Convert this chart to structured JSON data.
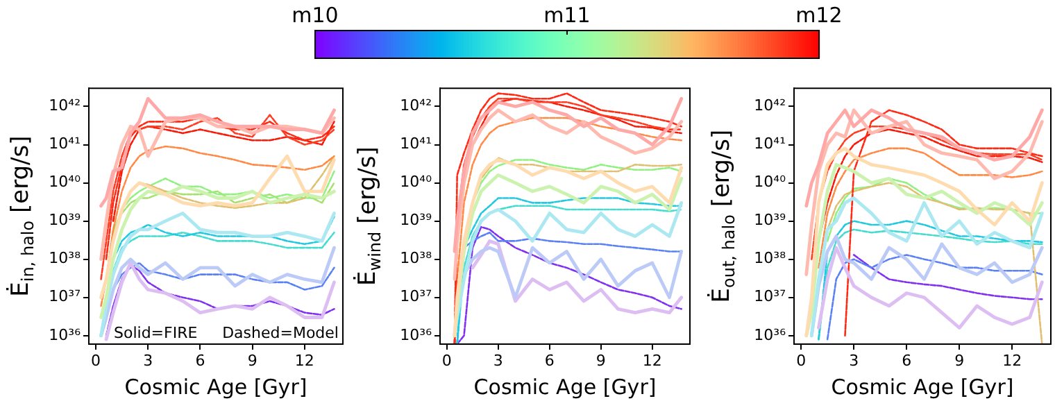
{
  "chart_data": [
    {
      "type": "line",
      "ylabel": "Ė$_{in, halo}$ [erg/s]",
      "xlabel": "Cosmic Age [Gyr]",
      "log": "y",
      "grid": false,
      "legend": false,
      "marker": "none",
      "xlim": [
        -0.4,
        14.2
      ],
      "xticks": [
        0,
        3,
        6,
        9,
        12
      ],
      "ylim": [
        6e+35,
        3e+42
      ],
      "yticks": [
        {
          "value": 1e+36,
          "label": "10³⁶"
        },
        {
          "value": 1e+37,
          "label": "10³⁷"
        },
        {
          "value": 1e+38,
          "label": "10³⁸"
        },
        {
          "value": 1e+39,
          "label": "10³⁹"
        },
        {
          "value": 1e+40,
          "label": "10⁴⁰"
        },
        {
          "value": 1e+41,
          "label": "10⁴¹"
        },
        {
          "value": 1e+42,
          "label": "10⁴²"
        }
      ],
      "clim": [
        10,
        12
      ],
      "cticks": [
        {
          "value": 10,
          "label": "m10"
        },
        {
          "value": 11,
          "label": "m11"
        },
        {
          "value": 12,
          "label": "m12"
        }
      ],
      "annotations": [
        "Solid=FIRE",
        "Dashed=Model"
      ],
      "x": [
        0.3,
        0.6,
        1,
        1.5,
        2,
        2.5,
        3,
        4,
        5,
        6,
        7,
        8,
        9,
        10,
        11,
        12,
        13,
        13.7
      ],
      "series": [
        {
          "color": "#ffa8a8",
          "line_style": "solid",
          "values": [
            2.5e+39,
            4e+39,
            2e+40,
            2.5e+40,
            2e+41,
            4e+41,
            1.6e+42,
            5e+41,
            5e+41,
            6e+41,
            4e+41,
            3e+41,
            3e+41,
            3e+41,
            2.5e+41,
            2.5e+41,
            2e+41,
            8e+41
          ]
        },
        {
          "color": "#ffbab0",
          "line_style": "solid",
          "values": [
            1e+38,
            1e+39,
            1.6e+40,
            1e+41,
            3e+41,
            2.5e+41,
            5e+40,
            4e+41,
            5e+41,
            5e+41,
            3e+41,
            3e+41,
            2e+41,
            3e+41,
            3e+41,
            2.5e+41,
            2e+41,
            5e+41
          ]
        },
        {
          "color": "#ffdcb0",
          "line_style": "solid",
          "values": [
            1e+37,
            3e+37,
            3e+38,
            2e+39,
            6e+39,
            1e+40,
            8e+39,
            5e+39,
            3e+39,
            2.5e+39,
            3e+39,
            2.5e+39,
            3e+39,
            1.3e+40,
            5e+40,
            6e+39,
            6e+39,
            4e+40
          ]
        },
        {
          "color": "#ccf2b0",
          "line_style": "solid",
          "values": [
            3e+36,
            1e+37,
            1e+38,
            6e+38,
            2e+39,
            4e+39,
            6e+39,
            5e+39,
            8e+39,
            6e+39,
            4e+39,
            4e+39,
            6e+39,
            3e+39,
            4e+39,
            5e+39,
            4e+39,
            6e+39
          ]
        },
        {
          "color": "#ace8f2",
          "line_style": "solid",
          "values": [
            1e+36,
            6e+36,
            4e+37,
            1.6e+38,
            4e+38,
            6e+38,
            6e+38,
            1e+39,
            1.6e+39,
            6e+38,
            5e+38,
            5e+38,
            4e+38,
            4e+38,
            5e+38,
            4e+38,
            3e+38,
            1.6e+39
          ]
        },
        {
          "color": "#bccaf8",
          "line_style": "solid",
          "values": [
            1e+36,
            3e+36,
            1.6e+37,
            6e+37,
            1e+38,
            6e+37,
            4e+37,
            8e+37,
            3e+37,
            6e+37,
            6e+37,
            2e+37,
            4e+37,
            2.5e+37,
            4e+37,
            3e+37,
            2.5e+37,
            2e+38
          ]
        },
        {
          "color": "#dcbef2",
          "line_style": "solid",
          "values": [
            null,
            8e+35,
            4e+36,
            2.5e+37,
            8e+37,
            3e+37,
            1.6e+37,
            1.3e+37,
            8e+36,
            4e+36,
            5e+36,
            6e+36,
            5e+36,
            1e+37,
            6e+36,
            3e+36,
            3e+36,
            2.5e+37
          ]
        },
        {
          "color": "#ff2a14",
          "line_style": "dashed",
          "values": [
            null,
            1e+38,
            3e+39,
            3e+40,
            1.6e+41,
            3e+41,
            4e+41,
            4e+41,
            4e+41,
            5e+41,
            3e+41,
            2.5e+41,
            2.5e+41,
            4e+41,
            2e+41,
            1.3e+41,
            1.6e+41,
            3e+41
          ]
        },
        {
          "color": "#ff3d22",
          "line_style": "dashed",
          "values": [
            3e+37,
            3e+38,
            6e+39,
            5e+40,
            2e+41,
            2.5e+41,
            3e+41,
            3e+41,
            2.5e+41,
            4e+41,
            5e+41,
            2e+41,
            1.6e+41,
            6e+41,
            1.6e+41,
            1e+41,
            1.3e+41,
            2.5e+41
          ]
        },
        {
          "color": "#f51a0a",
          "line_style": "dashed",
          "values": [
            null,
            null,
            1e+39,
            2e+40,
            1e+41,
            2.5e+41,
            3e+41,
            2.5e+41,
            2e+41,
            2.5e+41,
            2e+41,
            1.6e+41,
            1.3e+41,
            1.3e+41,
            1.6e+41,
            1.3e+41,
            1e+41,
            4e+41
          ]
        },
        {
          "color": "#ff8a45",
          "line_style": "dashed",
          "values": [
            6e+36,
            3e+37,
            6e+38,
            6e+39,
            2.5e+40,
            5e+40,
            7e+40,
            9e+40,
            8e+40,
            6e+40,
            5e+40,
            4e+40,
            3e+40,
            2.8e+40,
            2.5e+40,
            2.2e+40,
            2.8e+40,
            5e+40
          ]
        },
        {
          "color": "#e0c070",
          "line_style": "dashed",
          "values": [
            null,
            null,
            3e+38,
            2e+39,
            6e+39,
            1e+40,
            9e+39,
            6e+39,
            4e+39,
            3e+39,
            2.5e+39,
            2.2e+39,
            2.5e+39,
            3e+39,
            3e+39,
            4e+39,
            1.6e+40,
            5e+40
          ]
        },
        {
          "color": "#90f080",
          "line_style": "dashed",
          "values": [
            null,
            3e+37,
            5e+38,
            2e+39,
            4e+39,
            6e+39,
            8e+39,
            1.3e+40,
            8e+39,
            8e+39,
            5e+39,
            5e+39,
            6e+39,
            4e+39,
            5e+39,
            4e+39,
            4e+39,
            2e+40
          ]
        },
        {
          "color": "#a8e070",
          "line_style": "dashed",
          "values": [
            null,
            null,
            6e+38,
            1.6e+39,
            3e+39,
            4e+39,
            4e+39,
            6e+39,
            5e+39,
            5e+39,
            6e+39,
            3e+39,
            4e+39,
            5e+39,
            3e+39,
            5e+39,
            3e+39,
            1e+40
          ]
        },
        {
          "color": "#22c8e0",
          "line_style": "dashed",
          "values": [
            null,
            null,
            1e+38,
            3e+38,
            5e+38,
            6e+38,
            8e+38,
            5e+38,
            4e+38,
            5e+38,
            4e+38,
            4e+38,
            4e+38,
            4e+38,
            3e+38,
            2.5e+38,
            3e+38,
            1.3e+39
          ]
        },
        {
          "color": "#45dcd0",
          "line_style": "dashed",
          "values": [
            1e+36,
            6e+36,
            5e+37,
            2e+38,
            3e+38,
            4e+38,
            4e+38,
            4e+38,
            5e+38,
            4e+38,
            3e+38,
            3e+38,
            3e+38,
            2.5e+38,
            2e+38,
            2e+38,
            2e+38,
            5e+38
          ]
        },
        {
          "color": "#5a80f5",
          "line_style": "dashed",
          "values": [
            null,
            null,
            1.6e+37,
            4e+37,
            6e+37,
            8e+37,
            5e+37,
            4e+37,
            3e+37,
            4e+37,
            4e+37,
            4e+37,
            3e+37,
            2.5e+37,
            2.5e+37,
            1.6e+37,
            2e+37,
            6e+37
          ]
        },
        {
          "color": "#8030f0",
          "line_style": "dashed",
          "values": [
            null,
            1e+36,
            6e+36,
            3e+37,
            7e+37,
            5e+37,
            2.5e+37,
            1.3e+37,
            1e+37,
            8e+36,
            5e+36,
            6e+36,
            6e+36,
            8e+36,
            6e+36,
            4e+36,
            3.5e+36,
            5e+36
          ]
        }
      ]
    },
    {
      "type": "line",
      "ylabel": "Ė$_{wind}$ [erg/s]",
      "xlabel": "Cosmic Age [Gyr]",
      "log": "y",
      "grid": false,
      "legend": false,
      "marker": "none",
      "xlim": [
        -0.4,
        14.2
      ],
      "xticks": [
        0,
        3,
        6,
        9,
        12
      ],
      "ylim": [
        6e+35,
        3e+42
      ],
      "yticks": [
        {
          "value": 1e+36,
          "label": "10³⁶"
        },
        {
          "value": 1e+37,
          "label": "10³⁷"
        },
        {
          "value": 1e+38,
          "label": "10³⁸"
        },
        {
          "value": 1e+39,
          "label": "10³⁹"
        },
        {
          "value": 1e+40,
          "label": "10⁴⁰"
        },
        {
          "value": 1e+41,
          "label": "10⁴¹"
        },
        {
          "value": 1e+42,
          "label": "10⁴²"
        }
      ],
      "x": [
        0.45,
        0.6,
        1,
        1.5,
        2,
        2.5,
        3,
        4,
        5,
        6,
        7,
        8,
        9,
        10,
        11,
        12,
        13,
        13.7
      ],
      "series": [
        {
          "color": "#ffa8a8",
          "line_style": "solid",
          "values": [
            1.6e+38,
            1e+39,
            2e+40,
            2e+41,
            5e+41,
            8e+41,
            1.3e+42,
            1e+42,
            1.3e+42,
            8e+41,
            6e+41,
            3e+41,
            5e+41,
            2.5e+41,
            2e+41,
            1e+41,
            3e+41,
            1.6e+42
          ]
        },
        {
          "color": "#ffbab0",
          "line_style": "solid",
          "values": [
            3e+37,
            3e+38,
            1e+40,
            1e+41,
            2.5e+41,
            5e+41,
            8e+41,
            4e+41,
            6e+41,
            3e+41,
            2e+41,
            4e+41,
            1.6e+41,
            1e+41,
            6e+40,
            8e+40,
            1.6e+41,
            4e+41
          ]
        },
        {
          "color": "#ffdcb0",
          "line_style": "solid",
          "values": [
            1e+36,
            1e+37,
            3e+38,
            3e+39,
            1.6e+40,
            3e+40,
            4e+40,
            3e+40,
            1.6e+40,
            2.5e+40,
            2e+40,
            1.3e+40,
            2e+40,
            1e+40,
            6e+39,
            8e+39,
            3e+39,
            2.5e+40
          ]
        },
        {
          "color": "#ccf2b0",
          "line_style": "solid",
          "values": [
            1e+36,
            6e+36,
            1.6e+38,
            1.6e+39,
            6e+39,
            1e+40,
            1.6e+40,
            1e+40,
            6e+39,
            8e+39,
            5e+39,
            3e+39,
            8e+39,
            6e+39,
            3e+39,
            5e+39,
            2e+39,
            1.3e+40
          ]
        },
        {
          "color": "#ace8f2",
          "line_style": "solid",
          "values": [
            1e+36,
            3e+36,
            3e+37,
            3e+38,
            1e+39,
            1.6e+39,
            2e+39,
            1e+39,
            3e+38,
            1.6e+39,
            6e+38,
            5e+38,
            1.6e+39,
            6e+38,
            4e+38,
            8e+38,
            4e+38,
            3e+39
          ]
        },
        {
          "color": "#bccaf8",
          "line_style": "solid",
          "values": [
            null,
            null,
            4e+37,
            1e+38,
            1.6e+38,
            2e+38,
            1.6e+38,
            1e+37,
            2e+38,
            8e+37,
            1.6e+38,
            3e+37,
            1e+38,
            2e+37,
            5e+37,
            8e+37,
            1e+37,
            1.6e+38
          ]
        },
        {
          "color": "#dcbef2",
          "line_style": "solid",
          "values": [
            null,
            null,
            null,
            6e+37,
            1.3e+38,
            3e+38,
            2.5e+38,
            8e+36,
            3e+37,
            1.6e+37,
            2.5e+37,
            8e+36,
            1.6e+37,
            5e+36,
            4e+36,
            5e+36,
            4e+36,
            1e+37
          ]
        },
        {
          "color": "#ff2a14",
          "line_style": "dashed",
          "values": [
            6e+35,
            1.6e+40,
            6e+40,
            2.5e+41,
            8e+41,
            1.6e+42,
            2.2e+42,
            2e+42,
            1.6e+42,
            1.6e+42,
            2.2e+42,
            1.3e+42,
            8e+41,
            7e+41,
            6e+41,
            5e+41,
            4e+41,
            3e+41
          ]
        },
        {
          "color": "#ff3d22",
          "line_style": "dashed",
          "values": [
            6e+35,
            1e+39,
            3e+40,
            1.6e+41,
            5e+41,
            1e+42,
            1.6e+42,
            1.6e+42,
            1.3e+42,
            1.3e+42,
            1.3e+42,
            1e+42,
            6e+41,
            5e+41,
            4e+41,
            3e+41,
            2.5e+41,
            2.5e+41
          ]
        },
        {
          "color": "#f51a0a",
          "line_style": "dashed",
          "values": [
            6e+35,
            3e+38,
            1.6e+40,
            1e+41,
            3e+41,
            8e+41,
            1.3e+42,
            1.6e+42,
            1.4e+42,
            1.3e+42,
            1e+42,
            8e+41,
            6e+41,
            4.5e+41,
            3e+41,
            2.8e+41,
            2.2e+41,
            2e+41
          ]
        },
        {
          "color": "#ff8a45",
          "line_style": "dashed",
          "values": [
            6e+35,
            3e+37,
            3e+39,
            3e+40,
            1e+41,
            2e+41,
            3e+41,
            4e+41,
            5e+41,
            5e+41,
            5e+41,
            4e+41,
            3e+41,
            2.5e+41,
            2e+41,
            1.6e+41,
            1.4e+41,
            1.3e+41
          ]
        },
        {
          "color": "#e0c070",
          "line_style": "dashed",
          "values": [
            6e+35,
            1e+37,
            3e+38,
            3e+39,
            1.3e+40,
            2.5e+40,
            4.5e+40,
            3e+40,
            3e+40,
            2.5e+40,
            2e+40,
            2e+40,
            2e+40,
            2e+40,
            3e+40,
            2.8e+40,
            2.8e+40,
            3e+40
          ]
        },
        {
          "color": "#90f080",
          "line_style": "dashed",
          "values": [
            6e+35,
            1e+37,
            3e+38,
            3e+39,
            1e+40,
            2e+40,
            2.8e+40,
            4e+40,
            4e+40,
            3e+40,
            2.5e+40,
            2.2e+40,
            3e+40,
            2.5e+40,
            2.2e+40,
            2.2e+40,
            2.5e+40,
            2e+40
          ]
        },
        {
          "color": "#22c8e0",
          "line_style": "dashed",
          "values": [
            null,
            6e+35,
            2e+38,
            6e+38,
            1.6e+39,
            2.5e+39,
            4e+39,
            4e+39,
            3e+39,
            3e+39,
            3.5e+39,
            4e+39,
            4e+39,
            4e+39,
            3e+39,
            2.8e+39,
            2.5e+39,
            2.5e+39
          ]
        },
        {
          "color": "#45dcd0",
          "line_style": "dashed",
          "values": [
            null,
            6e+35,
            6e+37,
            4e+38,
            1e+39,
            1.6e+39,
            2e+39,
            2.5e+39,
            2.5e+39,
            2.5e+39,
            2e+39,
            2e+39,
            2e+39,
            2e+39,
            2e+39,
            2e+39,
            1.8e+39,
            2e+39
          ]
        },
        {
          "color": "#5a80f5",
          "line_style": "dashed",
          "values": [
            null,
            6e+35,
            2e+38,
            3e+38,
            4e+38,
            5e+38,
            3e+38,
            3e+38,
            3.5e+38,
            3e+38,
            2.8e+38,
            2.5e+38,
            2.5e+38,
            2.2e+38,
            2e+38,
            1.8e+38,
            1.6e+38,
            1.6e+38
          ]
        },
        {
          "color": "#8030f0",
          "line_style": "dashed",
          "values": [
            null,
            6e+35,
            1e+36,
            2e+38,
            7e+38,
            6e+38,
            4e+38,
            2e+38,
            1.3e+38,
            8e+37,
            6e+37,
            4e+37,
            2.5e+37,
            1.6e+37,
            1.3e+37,
            1e+37,
            6e+36,
            5e+36
          ]
        }
      ]
    },
    {
      "type": "line",
      "ylabel": "Ė$_{out, halo}$ [erg/s]",
      "xlabel": "Cosmic Age [Gyr]",
      "log": "y",
      "grid": false,
      "legend": false,
      "marker": "none",
      "xlim": [
        -0.4,
        14.2
      ],
      "xticks": [
        0,
        3,
        6,
        9,
        12
      ],
      "ylim": [
        6e+35,
        3e+42
      ],
      "yticks": [
        {
          "value": 1e+36,
          "label": "10³⁶"
        },
        {
          "value": 1e+37,
          "label": "10³⁷"
        },
        {
          "value": 1e+38,
          "label": "10³⁸"
        },
        {
          "value": 1e+39,
          "label": "10³⁹"
        },
        {
          "value": 1e+40,
          "label": "10⁴⁰"
        },
        {
          "value": 1e+41,
          "label": "10⁴¹"
        },
        {
          "value": 1e+42,
          "label": "10⁴²"
        }
      ],
      "x": [
        0.3,
        0.6,
        1,
        1.5,
        2,
        2.5,
        3,
        4,
        5,
        6,
        7,
        8,
        9,
        10,
        11,
        12,
        13,
        13.7
      ],
      "series": [
        {
          "color": "#ffa8a8",
          "line_style": "solid",
          "values": [
            2.5e+39,
            1e+40,
            3e+40,
            2e+41,
            4e+41,
            8e+41,
            3e+41,
            8e+41,
            5e+41,
            2.5e+41,
            2e+41,
            1.6e+41,
            8e+40,
            6e+40,
            4e+40,
            5e+40,
            1.6e+41,
            8e+41
          ]
        },
        {
          "color": "#ffbab0",
          "line_style": "solid",
          "values": [
            4e+37,
            8e+38,
            2e+40,
            1e+41,
            2e+41,
            1.6e+41,
            8e+41,
            2e+41,
            3e+41,
            4e+41,
            1e+41,
            6e+40,
            5e+40,
            4e+40,
            1.3e+40,
            2e+40,
            6e+40,
            4e+41
          ]
        },
        {
          "color": "#ffdcb0",
          "line_style": "solid",
          "values": [
            1e+36,
            1e+37,
            3e+39,
            3e+40,
            6e+40,
            8e+40,
            5e+40,
            3e+40,
            2.5e+40,
            2e+40,
            1.6e+40,
            1e+40,
            6e+39,
            2e+39,
            8e+38,
            3e+39,
            1e+39,
            1e+40
          ]
        },
        {
          "color": "#ccf2b0",
          "line_style": "solid",
          "values": [
            1e+36,
            4e+36,
            3e+38,
            6e+39,
            3e+40,
            2.5e+40,
            2e+40,
            1e+40,
            1.3e+40,
            5e+39,
            4e+39,
            6e+39,
            3e+39,
            1.6e+39,
            3e+39,
            2e+39,
            8e+38,
            3e+39
          ]
        },
        {
          "color": "#ace8f2",
          "line_style": "solid",
          "values": [
            null,
            1e+36,
            3e+37,
            6e+38,
            1e+39,
            3e+39,
            4e+39,
            1.6e+39,
            5e+38,
            3e+38,
            3e+39,
            4e+38,
            1e+39,
            2.5e+38,
            5e+38,
            3e+38,
            2e+38,
            1.6e+39
          ]
        },
        {
          "color": "#bccaf8",
          "line_style": "solid",
          "values": [
            null,
            1e+36,
            2e+37,
            1.6e+38,
            4e+38,
            1e+38,
            8e+37,
            3e+37,
            2e+38,
            1e+38,
            3e+37,
            2.5e+38,
            6e+37,
            4e+37,
            8e+37,
            2.5e+37,
            4e+37,
            2e+38
          ]
        },
        {
          "color": "#dcbef2",
          "line_style": "solid",
          "values": [
            null,
            null,
            1.6e+36,
            3e+37,
            2e+38,
            6e+37,
            2e+37,
            1e+37,
            6e+36,
            1.3e+37,
            1e+37,
            4e+36,
            1.6e+36,
            6e+36,
            3e+36,
            2e+36,
            3e+36,
            2.5e+37
          ]
        },
        {
          "color": "#ff2a14",
          "line_style": "dashed",
          "values": [
            null,
            null,
            null,
            null,
            null,
            1e+36,
            2e+40,
            4e+41,
            8e+41,
            6e+41,
            4e+41,
            2.5e+41,
            1e+41,
            8e+40,
            8e+40,
            8e+40,
            6e+40,
            5e+40
          ]
        },
        {
          "color": "#ff3d22",
          "line_style": "dashed",
          "values": [
            null,
            1e+38,
            3e+39,
            2e+40,
            6e+40,
            1.3e+41,
            2e+41,
            3e+41,
            3e+41,
            2.5e+41,
            2e+41,
            1.3e+41,
            8e+40,
            6e+40,
            5.6e+40,
            5.6e+40,
            5.6e+40,
            4e+40
          ]
        },
        {
          "color": "#f51a0a",
          "line_style": "dashed",
          "values": [
            null,
            null,
            3e+38,
            3e+39,
            1.6e+40,
            5e+40,
            1e+41,
            2e+41,
            2.5e+41,
            2e+41,
            1.6e+41,
            1e+41,
            7e+40,
            5e+40,
            5e+40,
            5e+40,
            4.5e+40,
            3.5e+40
          ]
        },
        {
          "color": "#ff8a45",
          "line_style": "dashed",
          "values": [
            null,
            null,
            6e+37,
            1.6e+39,
            8e+39,
            2e+40,
            4e+40,
            6e+40,
            8e+40,
            8e+40,
            6e+40,
            3e+40,
            1.6e+40,
            1.6e+40,
            1.6e+40,
            1.4e+40,
            1.6e+40,
            2e+40
          ]
        },
        {
          "color": "#e0c070",
          "line_style": "dashed",
          "values": [
            null,
            null,
            3e+37,
            6e+38,
            2.5e+39,
            5e+39,
            6e+39,
            8e+39,
            1e+40,
            8e+39,
            4e+39,
            3e+39,
            2e+39,
            2.2e+39,
            2e+39,
            2e+39,
            1.6e+39,
            6e+35
          ]
        },
        {
          "color": "#90f080",
          "line_style": "dashed",
          "values": [
            null,
            null,
            null,
            3e+38,
            1.6e+39,
            4e+39,
            7e+39,
            8e+39,
            1.3e+40,
            1e+40,
            5e+39,
            3e+39,
            2.2e+39,
            2e+39,
            2.2e+39,
            2e+39,
            1.6e+39,
            1.6e+39
          ]
        },
        {
          "color": "#22c8e0",
          "line_style": "dashed",
          "values": [
            null,
            null,
            8e+35,
            1.6e+38,
            4e+38,
            8e+38,
            1e+39,
            8e+38,
            8e+38,
            1e+39,
            8e+38,
            5.6e+38,
            4e+38,
            4e+38,
            3.5e+38,
            3e+38,
            3e+38,
            2.8e+38
          ]
        },
        {
          "color": "#45dcd0",
          "line_style": "dashed",
          "values": [
            null,
            null,
            8e+35,
            6e+37,
            3e+38,
            5e+38,
            6e+38,
            5e+38,
            5.6e+38,
            5e+38,
            4.5e+38,
            4e+38,
            3.5e+38,
            3e+38,
            2.8e+38,
            3e+38,
            2.5e+38,
            2.5e+38
          ]
        },
        {
          "color": "#5a80f5",
          "line_style": "dashed",
          "values": [
            null,
            null,
            null,
            8e+35,
            3e+37,
            8e+37,
            1e+38,
            6e+37,
            1e+38,
            1.3e+38,
            1e+38,
            8e+37,
            6e+37,
            6e+37,
            5e+37,
            5e+37,
            5e+37,
            4e+37
          ]
        },
        {
          "color": "#8030f0",
          "line_style": "dashed",
          "values": [
            null,
            null,
            null,
            null,
            null,
            null,
            1.3e+38,
            6e+37,
            3e+37,
            2.5e+37,
            2.2e+37,
            2e+37,
            1.6e+37,
            1.3e+37,
            1.1e+37,
            1e+37,
            9e+36,
            9e+36
          ]
        }
      ]
    }
  ]
}
